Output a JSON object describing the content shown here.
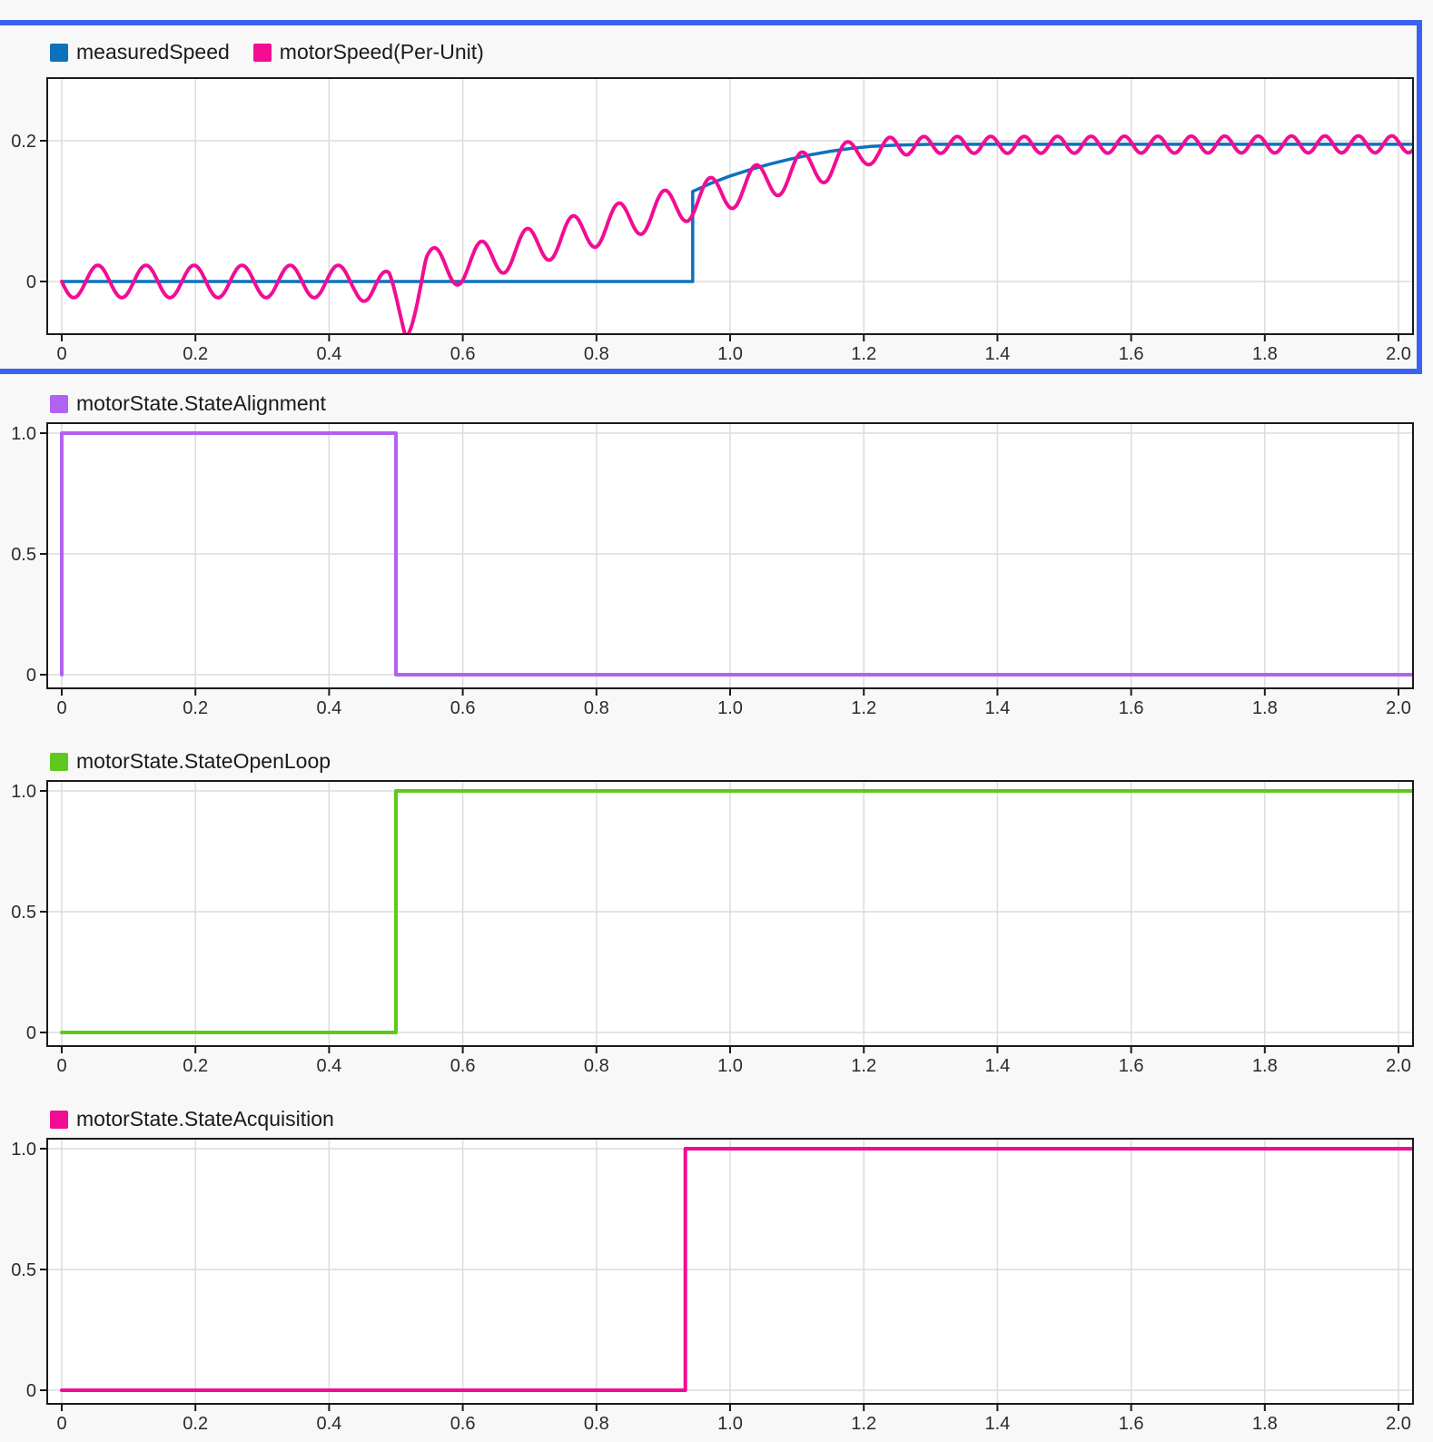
{
  "app": {
    "background_color": "#f8f8f8",
    "plot_background_color": "#ffffff",
    "grid_color": "#dcdcdc",
    "axis_color": "#1a1a1a",
    "tick_text_color": "#2b2b2b",
    "selection_border_color": "#3B62EE",
    "selected_subplot_index": 0
  },
  "chart_data": [
    {
      "type": "line",
      "title": "",
      "selected": true,
      "legend_position": "top-left",
      "grid": true,
      "xlim": [
        -0.022,
        2.022
      ],
      "ylim": [
        -0.075,
        0.289
      ],
      "xticks": [
        {
          "v": 0,
          "label": "0"
        },
        {
          "v": 0.2,
          "label": "0.2"
        },
        {
          "v": 0.4,
          "label": "0.4"
        },
        {
          "v": 0.6,
          "label": "0.6"
        },
        {
          "v": 0.8,
          "label": "0.8"
        },
        {
          "v": 1.0,
          "label": "1.0"
        },
        {
          "v": 1.2,
          "label": "1.2"
        },
        {
          "v": 1.4,
          "label": "1.4"
        },
        {
          "v": 1.6,
          "label": "1.6"
        },
        {
          "v": 1.8,
          "label": "1.8"
        },
        {
          "v": 2.0,
          "label": "2.0"
        }
      ],
      "yticks": [
        {
          "v": 0.2,
          "label": "0.2"
        },
        {
          "v": 0,
          "label": "0"
        }
      ],
      "series": [
        {
          "name": "measuredSpeed",
          "color": "#0D72BD",
          "render": "step-line",
          "points": [
            [
              0,
              0
            ],
            [
              0.944,
              0
            ],
            [
              0.944,
              0.128
            ],
            [
              0.97,
              0.139
            ],
            [
              1.0,
              0.15
            ],
            [
              1.03,
              0.159
            ],
            [
              1.06,
              0.167
            ],
            [
              1.09,
              0.174
            ],
            [
              1.12,
              0.18
            ],
            [
              1.15,
              0.185
            ],
            [
              1.18,
              0.189
            ],
            [
              1.21,
              0.192
            ],
            [
              1.25,
              0.1938
            ],
            [
              1.3,
              0.195
            ],
            [
              2.022,
              0.195
            ]
          ]
        },
        {
          "name": "motorSpeed(Per-Unit)",
          "color": "#F20D93",
          "render": "oscillation",
          "t_range": [
            0,
            2.022
          ],
          "centerline": [
            [
              0,
              0
            ],
            [
              0.44,
              0
            ],
            [
              0.46,
              -0.008
            ],
            [
              0.49,
              -0.012
            ],
            [
              0.515,
              -0.055
            ],
            [
              0.545,
              0.02
            ],
            [
              0.58,
              0.02
            ],
            [
              0.62,
              0.028
            ],
            [
              1.21,
              0.185
            ],
            [
              1.27,
              0.194
            ],
            [
              2.022,
              0.195
            ]
          ],
          "amplitude": [
            [
              0,
              0.023
            ],
            [
              0.44,
              0.023
            ],
            [
              0.49,
              0.026
            ],
            [
              0.515,
              0.03
            ],
            [
              0.55,
              0.028
            ],
            [
              0.62,
              0.027
            ],
            [
              1.15,
              0.026
            ],
            [
              1.22,
              0.017
            ],
            [
              1.28,
              0.012
            ],
            [
              2.022,
              0.012
            ]
          ],
          "frequency_cycles_per_unit": [
            [
              0,
              13.9
            ],
            [
              0.56,
              13.9
            ],
            [
              0.62,
              14.6
            ],
            [
              1.2,
              14.6
            ],
            [
              1.26,
              20
            ],
            [
              2.022,
              20
            ]
          ]
        }
      ]
    },
    {
      "type": "line",
      "title": "",
      "selected": false,
      "legend_position": "top-left",
      "grid": true,
      "xlim": [
        -0.022,
        2.022
      ],
      "ylim": [
        -0.056,
        1.041
      ],
      "xticks": [
        {
          "v": 0,
          "label": "0"
        },
        {
          "v": 0.2,
          "label": "0.2"
        },
        {
          "v": 0.4,
          "label": "0.4"
        },
        {
          "v": 0.6,
          "label": "0.6"
        },
        {
          "v": 0.8,
          "label": "0.8"
        },
        {
          "v": 1.0,
          "label": "1.0"
        },
        {
          "v": 1.2,
          "label": "1.2"
        },
        {
          "v": 1.4,
          "label": "1.4"
        },
        {
          "v": 1.6,
          "label": "1.6"
        },
        {
          "v": 1.8,
          "label": "1.8"
        },
        {
          "v": 2.0,
          "label": "2.0"
        }
      ],
      "yticks": [
        {
          "v": 1.0,
          "label": "1.0"
        },
        {
          "v": 0.5,
          "label": "0.5"
        },
        {
          "v": 0,
          "label": "0"
        }
      ],
      "series": [
        {
          "name": "motorState.StateAlignment",
          "color": "#B162F2",
          "render": "step-line",
          "points": [
            [
              0,
              0
            ],
            [
              0,
              1
            ],
            [
              0.5,
              1
            ],
            [
              0.5,
              0
            ],
            [
              2.022,
              0
            ]
          ]
        }
      ]
    },
    {
      "type": "line",
      "title": "",
      "selected": false,
      "legend_position": "top-left",
      "grid": true,
      "xlim": [
        -0.022,
        2.022
      ],
      "ylim": [
        -0.056,
        1.041
      ],
      "xticks": [
        {
          "v": 0,
          "label": "0"
        },
        {
          "v": 0.2,
          "label": "0.2"
        },
        {
          "v": 0.4,
          "label": "0.4"
        },
        {
          "v": 0.6,
          "label": "0.6"
        },
        {
          "v": 0.8,
          "label": "0.8"
        },
        {
          "v": 1.0,
          "label": "1.0"
        },
        {
          "v": 1.2,
          "label": "1.2"
        },
        {
          "v": 1.4,
          "label": "1.4"
        },
        {
          "v": 1.6,
          "label": "1.6"
        },
        {
          "v": 1.8,
          "label": "1.8"
        },
        {
          "v": 2.0,
          "label": "2.0"
        }
      ],
      "yticks": [
        {
          "v": 1.0,
          "label": "1.0"
        },
        {
          "v": 0.5,
          "label": "0.5"
        },
        {
          "v": 0,
          "label": "0"
        }
      ],
      "series": [
        {
          "name": "motorState.StateOpenLoop",
          "color": "#5EC81E",
          "render": "step-line",
          "points": [
            [
              0,
              0
            ],
            [
              0.5,
              0
            ],
            [
              0.5,
              1
            ],
            [
              2.022,
              1
            ]
          ]
        }
      ]
    },
    {
      "type": "line",
      "title": "",
      "selected": false,
      "legend_position": "top-left",
      "grid": true,
      "xlim": [
        -0.022,
        2.022
      ],
      "ylim": [
        -0.056,
        1.041
      ],
      "xticks": [
        {
          "v": 0,
          "label": "0"
        },
        {
          "v": 0.2,
          "label": "0.2"
        },
        {
          "v": 0.4,
          "label": "0.4"
        },
        {
          "v": 0.6,
          "label": "0.6"
        },
        {
          "v": 0.8,
          "label": "0.8"
        },
        {
          "v": 1.0,
          "label": "1.0"
        },
        {
          "v": 1.2,
          "label": "1.2"
        },
        {
          "v": 1.4,
          "label": "1.4"
        },
        {
          "v": 1.6,
          "label": "1.6"
        },
        {
          "v": 1.8,
          "label": "1.8"
        },
        {
          "v": 2.0,
          "label": "2.0"
        }
      ],
      "yticks": [
        {
          "v": 1.0,
          "label": "1.0"
        },
        {
          "v": 0.5,
          "label": "0.5"
        },
        {
          "v": 0,
          "label": "0"
        }
      ],
      "series": [
        {
          "name": "motorState.StateAcquisition",
          "color": "#F20D93",
          "render": "step-line",
          "points": [
            [
              0,
              0
            ],
            [
              0.933,
              0
            ],
            [
              0.933,
              1
            ],
            [
              2.022,
              1
            ]
          ]
        }
      ]
    }
  ]
}
